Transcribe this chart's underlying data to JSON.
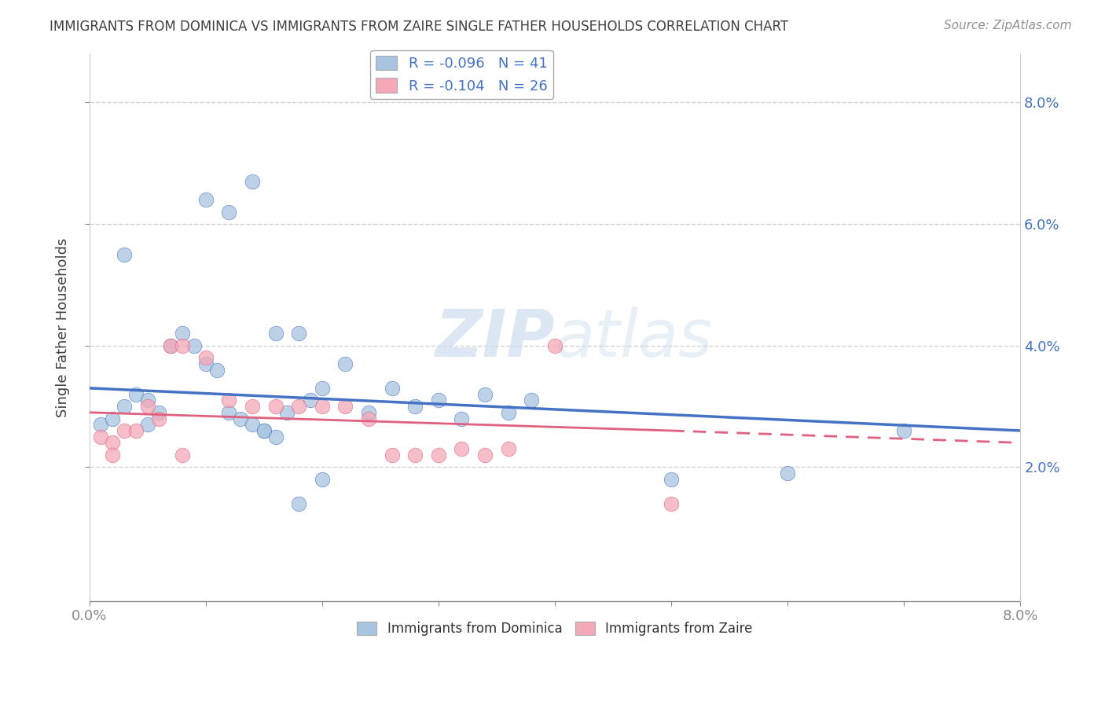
{
  "title": "IMMIGRANTS FROM DOMINICA VS IMMIGRANTS FROM ZAIRE SINGLE FATHER HOUSEHOLDS CORRELATION CHART",
  "source": "Source: ZipAtlas.com",
  "xlabel_bottom": "Immigrants from Dominica",
  "xlabel_bottom2": "Immigrants from Zaire",
  "ylabel": "Single Father Households",
  "legend_blue": "R = -0.096   N = 41",
  "legend_pink": "R = -0.104   N = 26",
  "xlim": [
    0.0,
    0.08
  ],
  "ylim": [
    -0.002,
    0.088
  ],
  "yticks": [
    0.02,
    0.04,
    0.06,
    0.08
  ],
  "xticks": [
    0.0,
    0.01,
    0.02,
    0.03,
    0.04,
    0.05,
    0.06,
    0.07,
    0.08
  ],
  "blue_color": "#a8c4e0",
  "pink_color": "#f4a8b8",
  "blue_line_color": "#4472c4",
  "pink_line_color": "#e06080",
  "title_color": "#404040",
  "source_color": "#909090",
  "blue_dots": [
    [
      0.001,
      0.027
    ],
    [
      0.002,
      0.028
    ],
    [
      0.003,
      0.03
    ],
    [
      0.004,
      0.032
    ],
    [
      0.005,
      0.031
    ],
    [
      0.006,
      0.029
    ],
    [
      0.007,
      0.04
    ],
    [
      0.008,
      0.042
    ],
    [
      0.009,
      0.04
    ],
    [
      0.01,
      0.037
    ],
    [
      0.011,
      0.036
    ],
    [
      0.012,
      0.029
    ],
    [
      0.013,
      0.028
    ],
    [
      0.014,
      0.027
    ],
    [
      0.015,
      0.026
    ],
    [
      0.016,
      0.042
    ],
    [
      0.017,
      0.029
    ],
    [
      0.018,
      0.042
    ],
    [
      0.019,
      0.031
    ],
    [
      0.02,
      0.033
    ],
    [
      0.022,
      0.037
    ],
    [
      0.024,
      0.029
    ],
    [
      0.026,
      0.033
    ],
    [
      0.028,
      0.03
    ],
    [
      0.03,
      0.031
    ],
    [
      0.032,
      0.028
    ],
    [
      0.034,
      0.032
    ],
    [
      0.036,
      0.029
    ],
    [
      0.038,
      0.031
    ],
    [
      0.003,
      0.055
    ],
    [
      0.01,
      0.064
    ],
    [
      0.012,
      0.062
    ],
    [
      0.014,
      0.067
    ],
    [
      0.015,
      0.026
    ],
    [
      0.016,
      0.025
    ],
    [
      0.018,
      0.014
    ],
    [
      0.02,
      0.018
    ],
    [
      0.05,
      0.018
    ],
    [
      0.06,
      0.019
    ],
    [
      0.07,
      0.026
    ],
    [
      0.005,
      0.027
    ]
  ],
  "pink_dots": [
    [
      0.001,
      0.025
    ],
    [
      0.002,
      0.024
    ],
    [
      0.003,
      0.026
    ],
    [
      0.004,
      0.026
    ],
    [
      0.005,
      0.03
    ],
    [
      0.006,
      0.028
    ],
    [
      0.007,
      0.04
    ],
    [
      0.008,
      0.04
    ],
    [
      0.01,
      0.038
    ],
    [
      0.012,
      0.031
    ],
    [
      0.014,
      0.03
    ],
    [
      0.016,
      0.03
    ],
    [
      0.018,
      0.03
    ],
    [
      0.02,
      0.03
    ],
    [
      0.022,
      0.03
    ],
    [
      0.024,
      0.028
    ],
    [
      0.026,
      0.022
    ],
    [
      0.028,
      0.022
    ],
    [
      0.03,
      0.022
    ],
    [
      0.032,
      0.023
    ],
    [
      0.034,
      0.022
    ],
    [
      0.036,
      0.023
    ],
    [
      0.04,
      0.04
    ],
    [
      0.05,
      0.014
    ],
    [
      0.002,
      0.022
    ],
    [
      0.008,
      0.022
    ]
  ],
  "blue_line_solid": [
    [
      0.0,
      0.033
    ],
    [
      0.08,
      0.026
    ]
  ],
  "pink_line_solid": [
    [
      0.0,
      0.029
    ],
    [
      0.05,
      0.026
    ]
  ],
  "pink_line_dashed": [
    [
      0.05,
      0.026
    ],
    [
      0.08,
      0.024
    ]
  ],
  "watermark_zip": "ZIP",
  "watermark_atlas": "atlas",
  "background_color": "#ffffff",
  "grid_color": "#cccccc"
}
